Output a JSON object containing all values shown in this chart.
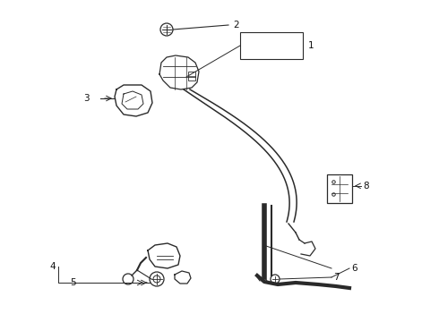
{
  "bg_color": "#ffffff",
  "line_color": "#2a2a2a",
  "label_color": "#111111",
  "gray_color": "#888888"
}
